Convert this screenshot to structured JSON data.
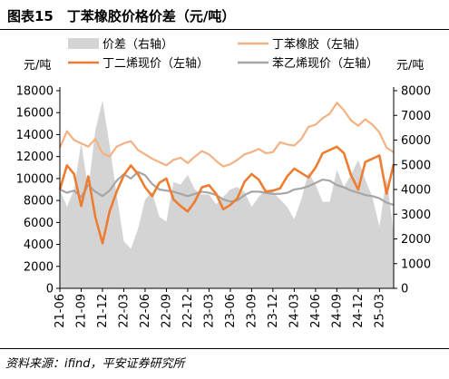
{
  "figure": {
    "title": "图表15　丁苯橡胶价格价差（元/吨）",
    "source": "资料来源：ifind，平安证券研究所"
  },
  "chart_data": {
    "type": "line",
    "left_axis": {
      "unit": "元/吨",
      "ylim": [
        0,
        18000
      ],
      "ticks": [
        0,
        2000,
        4000,
        6000,
        8000,
        10000,
        12000,
        14000,
        16000,
        18000
      ]
    },
    "right_axis": {
      "unit": "元/吨",
      "ylim": [
        0,
        8000
      ],
      "ticks": [
        0,
        1000,
        2000,
        3000,
        4000,
        5000,
        6000,
        7000,
        8000
      ]
    },
    "x_axis": {
      "range": [
        "2021-06",
        "2025-05"
      ],
      "tick_labels": [
        "21-06",
        "21-09",
        "21-12",
        "22-03",
        "22-06",
        "22-09",
        "22-12",
        "23-03",
        "23-06",
        "23-09",
        "23-12",
        "24-03",
        "24-06",
        "24-09",
        "24-12",
        "25-03"
      ]
    },
    "legend": [
      {
        "key": "spread",
        "label": "价差（右轴）",
        "color": "#d4d4d4",
        "style": "area"
      },
      {
        "key": "sbr",
        "label": "丁苯橡胶（左轴）",
        "color": "#f4b183",
        "style": "line"
      },
      {
        "key": "butadiene",
        "label": "丁二烯现价（左轴）",
        "color": "#ed7d31",
        "style": "line"
      },
      {
        "key": "styrene",
        "label": "苯乙烯现价（左轴）",
        "color": "#a6a6a6",
        "style": "line"
      }
    ],
    "series": [
      {
        "name": "丁苯橡胶（左轴）",
        "key": "sbr",
        "axis": "left",
        "x": [
          "2021-06",
          "2021-07",
          "2021-08",
          "2021-09",
          "2021-10",
          "2021-11",
          "2021-12",
          "2022-01",
          "2022-02",
          "2022-03",
          "2022-04",
          "2022-05",
          "2022-06",
          "2022-07",
          "2022-08",
          "2022-09",
          "2022-10",
          "2022-11",
          "2022-12",
          "2023-01",
          "2023-02",
          "2023-03",
          "2023-04",
          "2023-05",
          "2023-06",
          "2023-07",
          "2023-08",
          "2023-09",
          "2023-10",
          "2023-11",
          "2023-12",
          "2024-01",
          "2024-02",
          "2024-03",
          "2024-04",
          "2024-05",
          "2024-06",
          "2024-07",
          "2024-08",
          "2024-09",
          "2024-10",
          "2024-11",
          "2024-12",
          "2025-01",
          "2025-02",
          "2025-03",
          "2025-04",
          "2025-05"
        ],
        "values": [
          12800,
          14300,
          13500,
          13200,
          12900,
          13600,
          12300,
          12000,
          12900,
          13200,
          13400,
          12600,
          12200,
          11800,
          11500,
          11200,
          11700,
          11900,
          11400,
          12000,
          12500,
          12200,
          11600,
          11100,
          11300,
          11700,
          12200,
          12400,
          12700,
          12300,
          12400,
          13300,
          13100,
          13000,
          13600,
          14700,
          14900,
          15500,
          15900,
          16900,
          16200,
          15300,
          14800,
          15400,
          14900,
          14200,
          12800,
          12400
        ]
      },
      {
        "name": "丁二烯现价（左轴）",
        "key": "butadiene",
        "axis": "left",
        "x": [
          "2021-06",
          "2021-07",
          "2021-08",
          "2021-09",
          "2021-10",
          "2021-11",
          "2021-12",
          "2022-01",
          "2022-02",
          "2022-03",
          "2022-04",
          "2022-05",
          "2022-06",
          "2022-07",
          "2022-08",
          "2022-09",
          "2022-10",
          "2022-11",
          "2022-12",
          "2023-01",
          "2023-02",
          "2023-03",
          "2023-04",
          "2023-05",
          "2023-06",
          "2023-07",
          "2023-08",
          "2023-09",
          "2023-10",
          "2023-11",
          "2023-12",
          "2024-01",
          "2024-02",
          "2024-03",
          "2024-04",
          "2024-05",
          "2024-06",
          "2024-07",
          "2024-08",
          "2024-09",
          "2024-10",
          "2024-11",
          "2024-12",
          "2025-01",
          "2025-02",
          "2025-03",
          "2025-04",
          "2025-05"
        ],
        "values": [
          9000,
          11200,
          10400,
          7500,
          10200,
          6500,
          4100,
          7000,
          8800,
          10300,
          11200,
          10400,
          9200,
          8400,
          9600,
          10000,
          8100,
          7500,
          7000,
          7900,
          9200,
          9400,
          8600,
          7200,
          7600,
          8200,
          9700,
          10400,
          9900,
          8800,
          8900,
          9100,
          10200,
          10900,
          10500,
          10100,
          11000,
          12300,
          12600,
          12900,
          12300,
          10300,
          9000,
          11500,
          11800,
          12100,
          8600,
          11300
        ]
      },
      {
        "name": "苯乙烯现价（左轴）",
        "key": "styrene",
        "axis": "left",
        "x": [
          "2021-06",
          "2021-07",
          "2021-08",
          "2021-09",
          "2021-10",
          "2021-11",
          "2021-12",
          "2022-01",
          "2022-02",
          "2022-03",
          "2022-04",
          "2022-05",
          "2022-06",
          "2022-07",
          "2022-08",
          "2022-09",
          "2022-10",
          "2022-11",
          "2022-12",
          "2023-01",
          "2023-02",
          "2023-03",
          "2023-04",
          "2023-05",
          "2023-06",
          "2023-07",
          "2023-08",
          "2023-09",
          "2023-10",
          "2023-11",
          "2023-12",
          "2024-01",
          "2024-02",
          "2024-03",
          "2024-04",
          "2024-05",
          "2024-06",
          "2024-07",
          "2024-08",
          "2024-09",
          "2024-10",
          "2024-11",
          "2024-12",
          "2025-01",
          "2025-02",
          "2025-03",
          "2025-04",
          "2025-05"
        ],
        "values": [
          9000,
          8700,
          8900,
          8300,
          9400,
          8800,
          8400,
          8900,
          9800,
          10400,
          10000,
          10600,
          10300,
          9500,
          9000,
          8900,
          8800,
          8600,
          8400,
          8600,
          8800,
          8700,
          8500,
          8100,
          7900,
          8000,
          8500,
          8800,
          8800,
          8700,
          8600,
          8600,
          8700,
          9000,
          9100,
          9300,
          9600,
          9900,
          9800,
          9400,
          9200,
          8900,
          8700,
          8500,
          8400,
          8200,
          7800,
          7600
        ]
      },
      {
        "name": "价差（右轴）",
        "key": "spread",
        "axis": "right",
        "x": [
          "2021-06",
          "2021-07",
          "2021-08",
          "2021-09",
          "2021-10",
          "2021-11",
          "2021-12",
          "2022-01",
          "2022-02",
          "2022-03",
          "2022-04",
          "2022-05",
          "2022-06",
          "2022-07",
          "2022-08",
          "2022-09",
          "2022-10",
          "2022-11",
          "2022-12",
          "2023-01",
          "2023-02",
          "2023-03",
          "2023-04",
          "2023-05",
          "2023-06",
          "2023-07",
          "2023-08",
          "2023-09",
          "2023-10",
          "2023-11",
          "2023-12",
          "2024-01",
          "2024-02",
          "2024-03",
          "2024-04",
          "2024-05",
          "2024-06",
          "2024-07",
          "2024-08",
          "2024-09",
          "2024-10",
          "2024-11",
          "2024-12",
          "2025-01",
          "2025-02",
          "2025-03",
          "2025-04",
          "2025-05"
        ],
        "values": [
          4000,
          3300,
          4000,
          5900,
          4000,
          6400,
          7600,
          5800,
          3800,
          1900,
          1600,
          2400,
          3600,
          3900,
          2900,
          2700,
          4300,
          4200,
          4600,
          4000,
          3800,
          3800,
          3400,
          3700,
          4000,
          4100,
          3900,
          3300,
          3700,
          4000,
          3900,
          3600,
          3300,
          2800,
          3600,
          4700,
          4200,
          3500,
          3500,
          4800,
          4100,
          4600,
          5200,
          4400,
          3700,
          2500,
          4500,
          2200
        ]
      }
    ]
  }
}
